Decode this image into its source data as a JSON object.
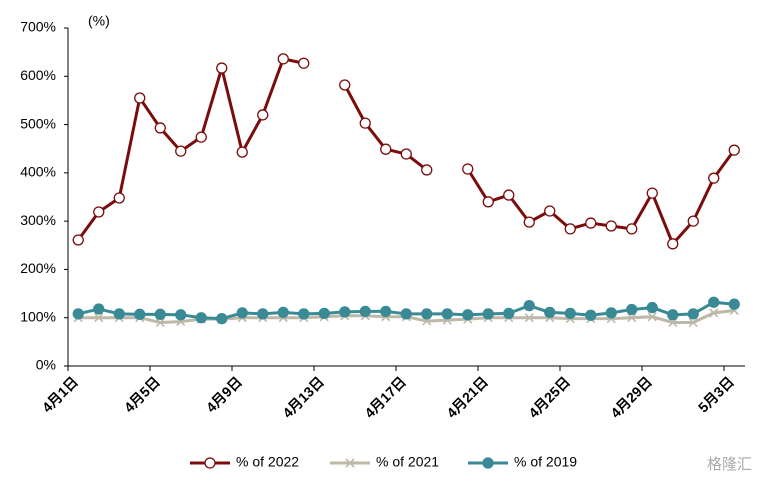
{
  "chart_data": {
    "type": "line",
    "annotation": "(%)",
    "watermark": "格隆汇",
    "categories": [
      "4月1日",
      null,
      null,
      null,
      "4月5日",
      null,
      null,
      null,
      "4月9日",
      null,
      null,
      null,
      "4月13日",
      null,
      null,
      null,
      "4月17日",
      null,
      null,
      null,
      "4月21日",
      null,
      null,
      null,
      "4月25日",
      null,
      null,
      null,
      "4月29日",
      null,
      null,
      null,
      "5月3日"
    ],
    "series": [
      {
        "name": "% of 2022",
        "color": "#7b0c0c",
        "marker": "circle-open",
        "values": [
          261,
          319,
          348,
          555,
          493,
          445,
          474,
          617,
          443,
          520,
          636,
          627,
          null,
          582,
          503,
          449,
          439,
          406,
          null,
          408,
          340,
          354,
          298,
          321,
          284,
          296,
          290,
          284,
          358,
          253,
          300,
          389,
          447
        ]
      },
      {
        "name": "% of 2021",
        "color": "#bdb8a8",
        "marker": "x",
        "values": [
          100,
          100,
          100,
          100,
          90,
          92,
          97,
          97,
          100,
          100,
          100,
          100,
          102,
          104,
          104,
          102,
          102,
          93,
          95,
          97,
          100,
          100,
          100,
          100,
          98,
          98,
          98,
          100,
          102,
          90,
          90,
          110,
          115
        ]
      },
      {
        "name": "% of 2019",
        "color": "#3a8a96",
        "marker": "circle",
        "values": [
          108,
          118,
          108,
          107,
          107,
          106,
          100,
          98,
          110,
          108,
          111,
          108,
          109,
          112,
          113,
          113,
          108,
          108,
          108,
          106,
          108,
          109,
          125,
          111,
          109,
          105,
          110,
          117,
          121,
          106,
          108,
          132,
          128
        ]
      }
    ],
    "ylim": [
      0,
      700
    ],
    "yticks": [
      {
        "value": 0,
        "label": "0%"
      },
      {
        "value": 100,
        "label": "100%"
      },
      {
        "value": 200,
        "label": "200%"
      },
      {
        "value": 300,
        "label": "300%"
      },
      {
        "value": 400,
        "label": "400%"
      },
      {
        "value": 500,
        "label": "500%"
      },
      {
        "value": 600,
        "label": "600%"
      },
      {
        "value": 700,
        "label": "700%"
      }
    ],
    "grid": false,
    "legend": "bottom"
  }
}
